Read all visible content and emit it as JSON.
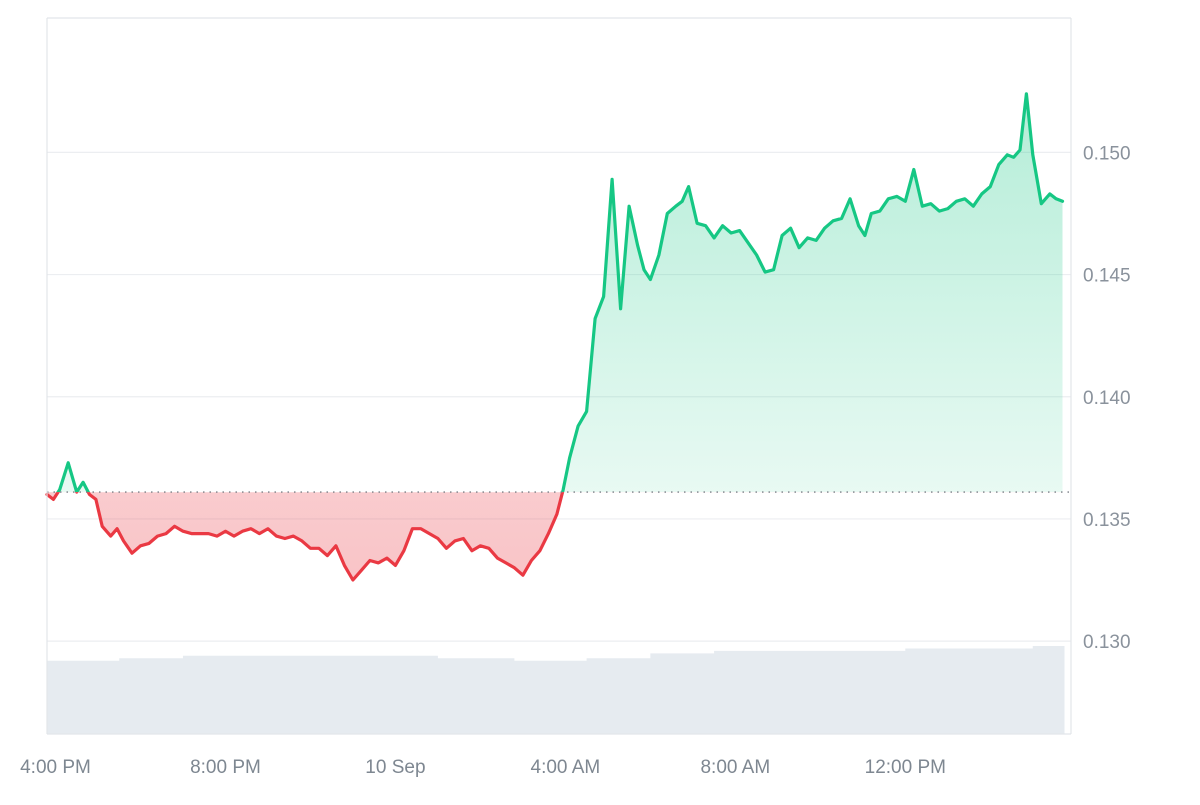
{
  "chart_data": {
    "type": "area",
    "title": "",
    "xlabel": "",
    "ylabel": "",
    "x_tick_labels": [
      "4:00 PM",
      "8:00 PM",
      "10 Sep",
      "4:00 AM",
      "8:00 AM",
      "12:00 PM"
    ],
    "x_tick_hours": [
      0,
      4,
      8,
      12,
      16,
      20
    ],
    "y_tick_labels": [
      "0.150",
      "0.145",
      "0.140",
      "0.135",
      "0.130"
    ],
    "y_ticks": [
      0.15,
      0.145,
      0.14,
      0.135,
      0.13
    ],
    "ylim": [
      0.1262,
      0.1555
    ],
    "xlim_hours": [
      -0.2,
      23.9
    ],
    "baseline": 0.1361,
    "grid": true,
    "colors": {
      "above": "#16c784",
      "below": "#ea3943",
      "above_fill": "#16c784",
      "below_fill": "#ea3943",
      "volume": "#e6ebf0",
      "grid": "#eceef1",
      "axis": "#e2e5e9",
      "baseline": "#7a7f86"
    },
    "series": [
      {
        "x_hours": [
          -0.2,
          -0.05,
          0.1,
          0.3,
          0.5,
          0.65,
          0.8,
          0.95,
          1.1,
          1.3,
          1.45,
          1.6,
          1.8,
          2.0,
          2.2,
          2.4,
          2.6,
          2.8,
          3.0,
          3.2,
          3.4,
          3.6,
          3.8,
          4.0,
          4.2,
          4.4,
          4.6,
          4.8,
          5.0,
          5.2,
          5.4,
          5.6,
          5.8,
          6.0,
          6.2,
          6.4,
          6.6,
          6.8,
          7.0,
          7.2,
          7.4,
          7.6,
          7.8,
          8.0,
          8.2,
          8.4,
          8.6,
          8.8,
          9.0,
          9.2,
          9.4,
          9.6,
          9.8,
          10.0,
          10.2,
          10.4,
          10.6,
          10.8,
          11.0,
          11.2,
          11.4,
          11.6,
          11.8,
          11.95,
          12.1,
          12.3,
          12.5,
          12.7,
          12.9,
          13.1,
          13.3,
          13.5,
          13.7,
          13.85,
          14.0,
          14.2,
          14.4,
          14.6,
          14.75,
          14.9,
          15.1,
          15.3,
          15.5,
          15.7,
          15.9,
          16.1,
          16.3,
          16.5,
          16.7,
          16.9,
          17.1,
          17.3,
          17.5,
          17.7,
          17.9,
          18.1,
          18.3,
          18.5,
          18.7,
          18.9,
          19.05,
          19.2,
          19.4,
          19.6,
          19.8,
          20.0,
          20.2,
          20.4,
          20.6,
          20.8,
          21.0,
          21.2,
          21.4,
          21.6,
          21.8,
          22.0,
          22.2,
          22.4,
          22.55,
          22.7,
          22.85,
          23.0,
          23.2,
          23.4,
          23.55,
          23.7
        ],
        "values": [
          0.136,
          0.1358,
          0.1362,
          0.1373,
          0.1361,
          0.1365,
          0.136,
          0.1358,
          0.1347,
          0.1343,
          0.1346,
          0.1341,
          0.1336,
          0.1339,
          0.134,
          0.1343,
          0.1344,
          0.1347,
          0.1345,
          0.1344,
          0.1344,
          0.1344,
          0.1343,
          0.1345,
          0.1343,
          0.1345,
          0.1346,
          0.1344,
          0.1346,
          0.1343,
          0.1342,
          0.1343,
          0.1341,
          0.1338,
          0.1338,
          0.1335,
          0.1339,
          0.1331,
          0.1325,
          0.1329,
          0.1333,
          0.1332,
          0.1334,
          0.1331,
          0.1337,
          0.1346,
          0.1346,
          0.1344,
          0.1342,
          0.1338,
          0.1341,
          0.1342,
          0.1337,
          0.1339,
          0.1338,
          0.1334,
          0.1332,
          0.133,
          0.1327,
          0.1333,
          0.1337,
          0.1344,
          0.1352,
          0.1362,
          0.1375,
          0.1388,
          0.1394,
          0.1432,
          0.1441,
          0.1489,
          0.1436,
          0.1478,
          0.1462,
          0.1452,
          0.1448,
          0.1458,
          0.1475,
          0.1478,
          0.148,
          0.1486,
          0.1471,
          0.147,
          0.1465,
          0.147,
          0.1467,
          0.1468,
          0.1463,
          0.1458,
          0.1451,
          0.1452,
          0.1466,
          0.1469,
          0.1461,
          0.1465,
          0.1464,
          0.1469,
          0.1472,
          0.1473,
          0.1481,
          0.147,
          0.1466,
          0.1475,
          0.1476,
          0.1481,
          0.1482,
          0.148,
          0.1493,
          0.1478,
          0.1479,
          0.1476,
          0.1477,
          0.148,
          0.1481,
          0.1478,
          0.1483,
          0.1486,
          0.1495,
          0.1499,
          0.1498,
          0.1501,
          0.1524,
          0.1499,
          0.1479,
          0.1483,
          0.1481,
          0.148
        ]
      }
    ],
    "volume": {
      "x_hours": [
        -0.2,
        1.5,
        3.0,
        5.0,
        7.0,
        9.0,
        10.8,
        12.5,
        14.0,
        15.5,
        17.0,
        18.5,
        20.0,
        21.5,
        23.0,
        23.7
      ],
      "values": [
        0.1292,
        0.1293,
        0.1294,
        0.1294,
        0.1294,
        0.1293,
        0.1292,
        0.1293,
        0.1295,
        0.1296,
        0.1296,
        0.1296,
        0.1297,
        0.1297,
        0.1298,
        0.1298
      ]
    }
  }
}
